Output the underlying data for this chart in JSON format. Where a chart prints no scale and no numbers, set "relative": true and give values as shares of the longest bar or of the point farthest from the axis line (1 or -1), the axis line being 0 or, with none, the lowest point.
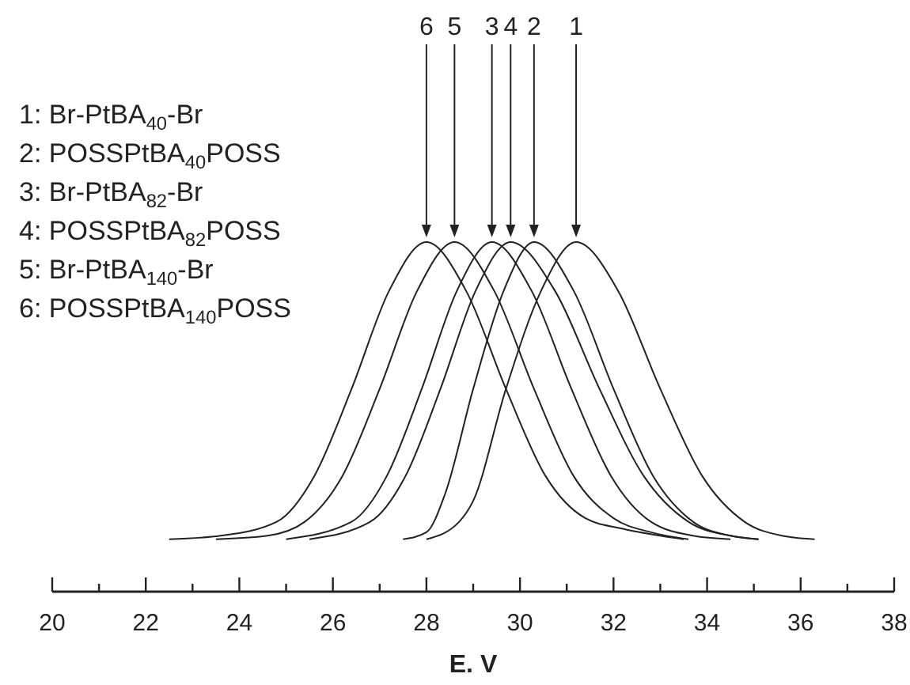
{
  "chart_data": {
    "type": "line",
    "xlabel": "E. V",
    "relative": true,
    "marker": "none",
    "line_style": "solid",
    "grid": false,
    "tick_labels": "x",
    "xlim": [
      20,
      38
    ],
    "xticks": [
      20,
      {
        "value": 21,
        "label": null
      },
      22,
      {
        "value": 23,
        "label": null
      },
      24,
      {
        "value": 25,
        "label": null
      },
      26,
      {
        "value": 27,
        "label": null
      },
      28,
      {
        "value": 29,
        "label": null
      },
      30,
      {
        "value": 31,
        "label": null
      },
      32,
      {
        "value": 33,
        "label": null
      },
      34,
      {
        "value": 35,
        "label": null
      },
      36,
      {
        "value": 37,
        "label": null
      },
      38
    ],
    "series": [
      {
        "color": "#222222",
        "x": [
          28.0,
          28.7,
          29.0,
          29.7,
          30.45,
          31.2,
          32.1,
          33.0,
          33.9,
          34.8,
          35.6,
          36.3
        ],
        "values": [
          0.15,
          0.2,
          0.26,
          0.58,
          0.86,
          1,
          0.86,
          0.58,
          0.33,
          0.2,
          0.16,
          0.15
        ]
      },
      {
        "color": "#222222",
        "x": [
          27.5,
          28.0,
          28.4,
          29.0,
          29.65,
          30.3,
          31.15,
          32.0,
          32.85,
          33.7,
          34.5,
          35.1
        ],
        "values": [
          0.15,
          0.17,
          0.28,
          0.58,
          0.86,
          1,
          0.86,
          0.58,
          0.33,
          0.2,
          0.16,
          0.15
        ]
      },
      {
        "color": "#222222",
        "x": [
          25.0,
          26.4,
          27.15,
          27.9,
          28.65,
          29.4,
          30.25,
          31.1,
          31.95,
          32.8,
          33.7,
          34.5
        ],
        "values": [
          0.15,
          0.2,
          0.33,
          0.58,
          0.86,
          1,
          0.86,
          0.58,
          0.33,
          0.2,
          0.16,
          0.15
        ]
      },
      {
        "color": "#222222",
        "x": [
          25.5,
          26.8,
          27.55,
          28.3,
          29.05,
          29.8,
          30.75,
          31.7,
          32.65,
          33.6,
          34.5,
          35.1
        ],
        "values": [
          0.15,
          0.2,
          0.33,
          0.58,
          0.86,
          1,
          0.86,
          0.58,
          0.33,
          0.2,
          0.16,
          0.15
        ]
      },
      {
        "color": "#222222",
        "x": [
          23.5,
          24.6,
          25.4,
          26.2,
          27.0,
          27.8,
          28.6,
          29.45,
          30.3,
          31.15,
          32.0,
          32.8,
          33.6
        ],
        "values": [
          0.15,
          0.16,
          0.2,
          0.33,
          0.58,
          0.86,
          1,
          0.86,
          0.58,
          0.33,
          0.21,
          0.17,
          0.15
        ]
      },
      {
        "color": "#222222",
        "x": [
          22.5,
          23.6,
          24.8,
          25.6,
          26.4,
          27.2,
          28.0,
          28.85,
          29.7,
          30.55,
          31.4,
          32.2,
          33.0,
          33.5
        ],
        "values": [
          0.15,
          0.16,
          0.2,
          0.33,
          0.58,
          0.86,
          1,
          0.86,
          0.58,
          0.33,
          0.21,
          0.18,
          0.16,
          0.15
        ]
      }
    ],
    "annotations": [
      "1: Br-PtBA$_{40}$-Br",
      "2: POSSPtBA$_{40}$POSS",
      "3: Br-PtBA$_{82}$-Br",
      "4: POSSPtBA$_{82}$POSS",
      "5: Br-PtBA$_{140}$-Br",
      "6: POSSPtBA$_{140}$POSS",
      {
        "text": "1",
        "x": 31.2,
        "y": 1
      },
      {
        "text": "2",
        "x": 30.3,
        "y": 1
      },
      {
        "text": "3",
        "x": 29.4,
        "y": 1
      },
      {
        "text": "4",
        "x": 29.8,
        "y": 1
      },
      {
        "text": "5",
        "x": 28.6,
        "y": 1
      },
      {
        "text": "6",
        "x": 28.0,
        "y": 1
      }
    ]
  }
}
